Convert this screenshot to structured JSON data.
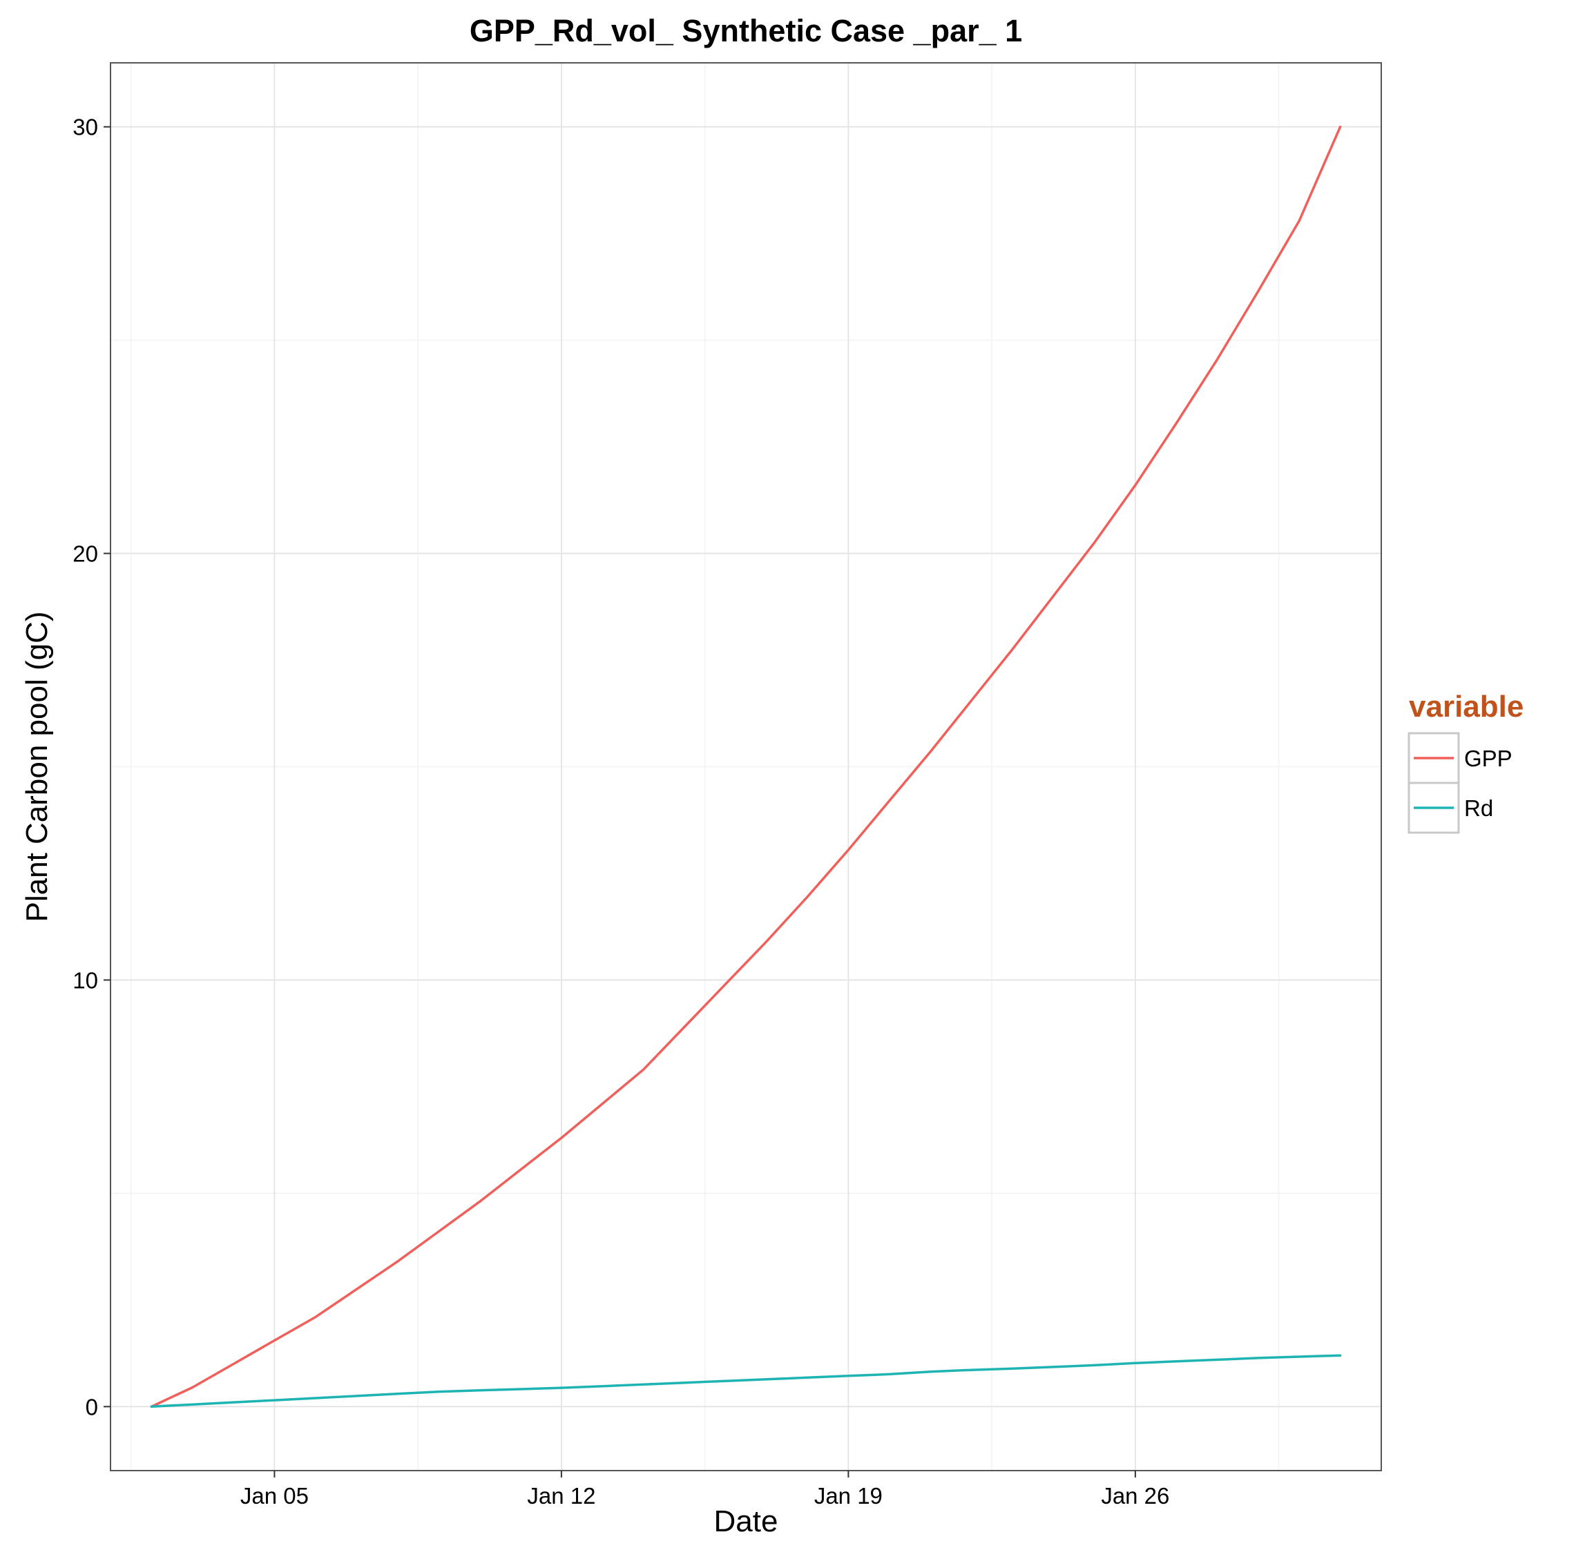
{
  "chart_data": {
    "type": "line",
    "title": "GPP_Rd_vol_ Synthetic Case _par_ 1",
    "xlabel": "Date",
    "ylabel": "Plant Carbon pool (gC)",
    "x_ticks": [
      "Jan 05",
      "Jan 12",
      "Jan 19",
      "Jan 26"
    ],
    "y_ticks": [
      0,
      10,
      20,
      30
    ],
    "xlim": [
      "2001-01-01",
      "2001-02-01"
    ],
    "ylim": [
      -1.5,
      31.5
    ],
    "grid": true,
    "legend": {
      "title": "variable",
      "position": "right"
    },
    "x": [
      "2001-01-02",
      "2001-01-03",
      "2001-01-04",
      "2001-01-05",
      "2001-01-06",
      "2001-01-07",
      "2001-01-08",
      "2001-01-09",
      "2001-01-10",
      "2001-01-11",
      "2001-01-12",
      "2001-01-13",
      "2001-01-14",
      "2001-01-15",
      "2001-01-16",
      "2001-01-17",
      "2001-01-18",
      "2001-01-19",
      "2001-01-20",
      "2001-01-21",
      "2001-01-22",
      "2001-01-23",
      "2001-01-24",
      "2001-01-25",
      "2001-01-26",
      "2001-01-27",
      "2001-01-28",
      "2001-01-29",
      "2001-01-30",
      "2001-01-31"
    ],
    "series": [
      {
        "name": "GPP",
        "color": "#f05f5a",
        "values": [
          0.0,
          0.45,
          1.0,
          1.55,
          2.1,
          2.75,
          3.4,
          4.1,
          4.8,
          5.55,
          6.3,
          7.1,
          7.9,
          8.9,
          9.9,
          10.9,
          11.95,
          13.05,
          14.2,
          15.35,
          16.55,
          17.75,
          19.0,
          20.25,
          21.6,
          23.05,
          24.55,
          26.15,
          27.8,
          30.0
        ]
      },
      {
        "name": "Rd",
        "color": "#1eb4b4",
        "values": [
          0.0,
          0.05,
          0.1,
          0.15,
          0.2,
          0.25,
          0.3,
          0.35,
          0.38,
          0.41,
          0.44,
          0.48,
          0.52,
          0.56,
          0.6,
          0.64,
          0.68,
          0.72,
          0.76,
          0.82,
          0.86,
          0.89,
          0.93,
          0.97,
          1.02,
          1.06,
          1.1,
          1.14,
          1.17,
          1.2
        ]
      }
    ]
  }
}
